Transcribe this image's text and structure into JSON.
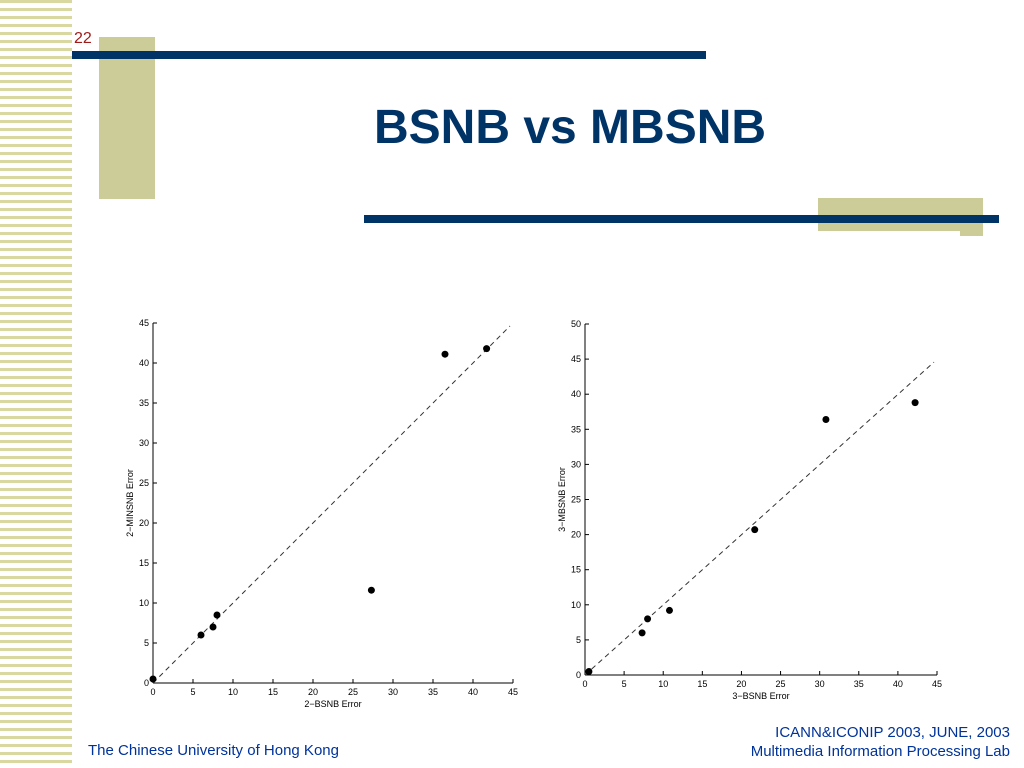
{
  "slide": {
    "page_number": "22",
    "title": "BSNB vs MBSNB",
    "footer_left": "The Chinese University of Hong Kong",
    "footer_right_line1": "ICANN&ICONIP 2003, JUNE, 2003",
    "footer_right_line2": "Multimedia Information Processing Lab"
  },
  "colors": {
    "title": "#003366",
    "accent_bar": "#003366",
    "accent_block": "#cccc99",
    "page_number": "#a01a1a",
    "footer_text": "#003399"
  },
  "chart_data": [
    {
      "type": "scatter",
      "title": "",
      "xlabel": "2−BSNB Error",
      "ylabel": "2−MINSNB Error",
      "xlim": [
        0,
        45
      ],
      "ylim": [
        0,
        45
      ],
      "xticks": [
        0,
        5,
        10,
        15,
        20,
        25,
        30,
        35,
        40,
        45
      ],
      "yticks": [
        0,
        5,
        10,
        15,
        20,
        25,
        30,
        35,
        40,
        45
      ],
      "reference_line": "y = x (dashed)",
      "grid": false,
      "points": [
        {
          "x": 0,
          "y": 0.5
        },
        {
          "x": 6,
          "y": 6
        },
        {
          "x": 7.5,
          "y": 7
        },
        {
          "x": 8,
          "y": 8.5
        },
        {
          "x": 27.3,
          "y": 11.6
        },
        {
          "x": 36.5,
          "y": 41.1
        },
        {
          "x": 41.7,
          "y": 41.8
        }
      ]
    },
    {
      "type": "scatter",
      "title": "",
      "xlabel": "3−BSNB Error",
      "ylabel": "3−MBSNB Error",
      "xlim": [
        0,
        45
      ],
      "ylim": [
        0,
        50
      ],
      "xticks": [
        0,
        5,
        10,
        15,
        20,
        25,
        30,
        35,
        40,
        45
      ],
      "yticks": [
        0,
        5,
        10,
        15,
        20,
        25,
        30,
        35,
        40,
        45,
        50
      ],
      "reference_line": "y = x (dashed)",
      "grid": false,
      "points": [
        {
          "x": 0.5,
          "y": 0.5
        },
        {
          "x": 7.3,
          "y": 6
        },
        {
          "x": 8,
          "y": 8
        },
        {
          "x": 10.8,
          "y": 9.2
        },
        {
          "x": 21.7,
          "y": 20.7
        },
        {
          "x": 30.8,
          "y": 36.4
        },
        {
          "x": 42.2,
          "y": 38.8
        }
      ]
    }
  ]
}
